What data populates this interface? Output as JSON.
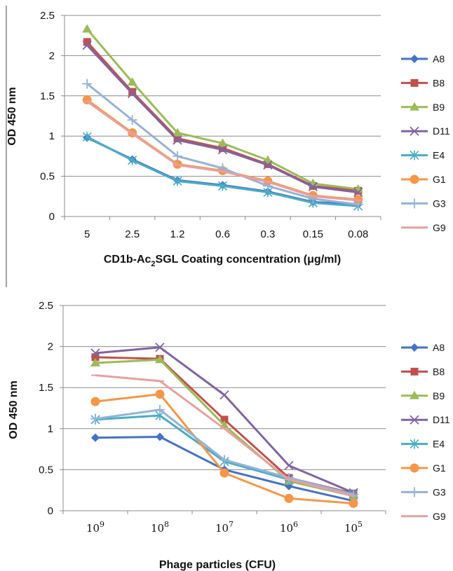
{
  "chart_data": [
    {
      "type": "line",
      "ylabel": "OD 450 nm",
      "xlabel": {
        "prefix": "CD1b-Ac",
        "subscript": "2",
        "suffix": "SGL Coating concentration (μg/ml)"
      },
      "categories": [
        "5",
        "2.5",
        "1.2",
        "0.6",
        "0.3",
        "0.15",
        "0.08"
      ],
      "ylim": [
        0,
        2.5
      ],
      "yticks": [
        "0",
        "0.5",
        "1",
        "1.5",
        "2",
        "2.5"
      ],
      "grid": true,
      "legend_position": "right",
      "series": [
        {
          "name": "A8",
          "color": "#4472C4",
          "marker": "diamond",
          "values": [
            0.98,
            0.71,
            0.45,
            0.39,
            0.31,
            0.18,
            0.15
          ]
        },
        {
          "name": "B8",
          "color": "#C0504D",
          "marker": "square",
          "values": [
            2.17,
            1.55,
            0.97,
            0.85,
            0.65,
            0.38,
            0.32
          ]
        },
        {
          "name": "B9",
          "color": "#9BBB59",
          "marker": "triangle",
          "values": [
            2.33,
            1.67,
            1.04,
            0.91,
            0.7,
            0.41,
            0.34
          ]
        },
        {
          "name": "D11",
          "color": "#8064A2",
          "marker": "x",
          "values": [
            2.13,
            1.53,
            0.95,
            0.83,
            0.64,
            0.37,
            0.3
          ]
        },
        {
          "name": "E4",
          "color": "#4BACC6",
          "marker": "asterisk",
          "values": [
            0.99,
            0.7,
            0.44,
            0.38,
            0.3,
            0.17,
            0.13
          ]
        },
        {
          "name": "G1",
          "color": "#F79646",
          "marker": "circle",
          "values": [
            1.45,
            1.04,
            0.65,
            0.57,
            0.44,
            0.26,
            0.21
          ]
        },
        {
          "name": "G3",
          "color": "#95B3D7",
          "marker": "plus",
          "values": [
            1.65,
            1.2,
            0.75,
            0.6,
            0.38,
            0.22,
            0.15
          ]
        },
        {
          "name": "G9",
          "color": "#E6A0A0",
          "marker": "dash",
          "values": [
            1.43,
            1.03,
            0.64,
            0.56,
            0.43,
            0.25,
            0.2
          ]
        }
      ]
    },
    {
      "type": "line",
      "ylabel": "OD 450 nm",
      "xlabel": "Phage particles (CFU)",
      "categories": [
        {
          "base": "10",
          "exp": "9"
        },
        {
          "base": "10",
          "exp": "8"
        },
        {
          "base": "10",
          "exp": "7"
        },
        {
          "base": "10",
          "exp": "6"
        },
        {
          "base": "10",
          "exp": "5"
        }
      ],
      "ylim": [
        0,
        2.5
      ],
      "yticks": [
        "0",
        "0.5",
        "1",
        "1.5",
        "2",
        "2.5"
      ],
      "grid": true,
      "legend_position": "right",
      "series": [
        {
          "name": "A8",
          "color": "#4472C4",
          "marker": "diamond",
          "values": [
            0.89,
            0.9,
            0.5,
            0.3,
            0.12
          ]
        },
        {
          "name": "B8",
          "color": "#C0504D",
          "marker": "square",
          "values": [
            1.87,
            1.85,
            1.11,
            0.4,
            0.21
          ]
        },
        {
          "name": "B9",
          "color": "#9BBB59",
          "marker": "triangle",
          "values": [
            1.8,
            1.84,
            1.04,
            0.36,
            0.18
          ]
        },
        {
          "name": "D11",
          "color": "#8064A2",
          "marker": "x",
          "values": [
            1.92,
            1.99,
            1.41,
            0.55,
            0.22
          ]
        },
        {
          "name": "E4",
          "color": "#4BACC6",
          "marker": "asterisk",
          "values": [
            1.11,
            1.16,
            0.6,
            0.38,
            0.2
          ]
        },
        {
          "name": "G1",
          "color": "#F79646",
          "marker": "circle",
          "values": [
            1.33,
            1.42,
            0.46,
            0.15,
            0.09
          ]
        },
        {
          "name": "G3",
          "color": "#95B3D7",
          "marker": "plus",
          "values": [
            1.12,
            1.23,
            0.62,
            0.4,
            0.2
          ]
        },
        {
          "name": "G9",
          "color": "#E6A0A0",
          "marker": "dash",
          "values": [
            1.65,
            1.58,
            1.0,
            0.38,
            0.18
          ]
        }
      ]
    }
  ]
}
